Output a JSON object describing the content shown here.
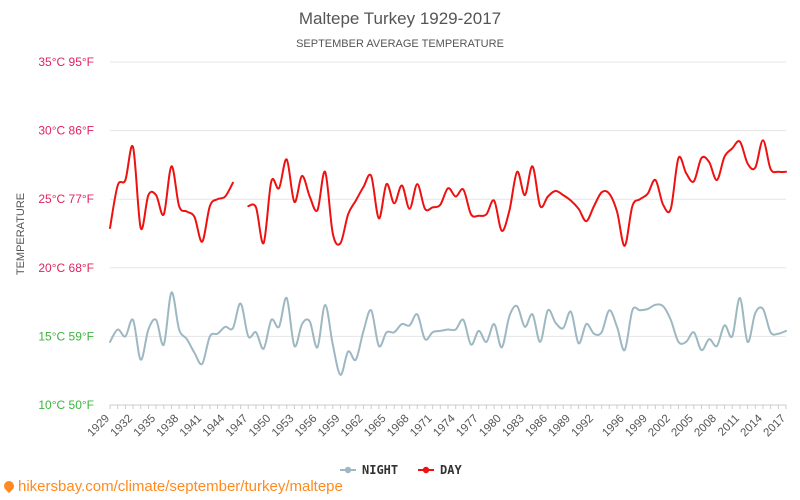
{
  "chart_data": {
    "type": "line",
    "title": "Maltepe Turkey 1929-2017",
    "subtitle": "SEPTEMBER AVERAGE TEMPERATURE",
    "ylabel": "TEMPERATURE",
    "ylim": [
      10,
      35
    ],
    "y_ticks": [
      {
        "value": 35,
        "label": "35°C 95°F",
        "color": "#e0245e"
      },
      {
        "value": 30,
        "label": "30°C 86°F",
        "color": "#e0245e"
      },
      {
        "value": 25,
        "label": "25°C 77°F",
        "color": "#e0245e"
      },
      {
        "value": 20,
        "label": "20°C 68°F",
        "color": "#e0245e"
      },
      {
        "value": 15,
        "label": "15°C 59°F",
        "color": "#3fb33f"
      },
      {
        "value": 10,
        "label": "10°C 50°F",
        "color": "#3fb33f"
      }
    ],
    "x_tick_labels": [
      "1929",
      "1932",
      "1935",
      "1938",
      "1941",
      "1944",
      "1947",
      "1950",
      "1953",
      "1956",
      "1959",
      "1962",
      "1965",
      "1968",
      "1971",
      "1974",
      "1977",
      "1980",
      "1983",
      "1986",
      "1989",
      "1992",
      "1996",
      "1999",
      "2002",
      "2005",
      "2008",
      "2011",
      "2014",
      "2017"
    ],
    "legend_position": "bottom",
    "grid": true,
    "series": [
      {
        "name": "NIGHT",
        "color": "#9db8c2",
        "points": [
          [
            1929,
            14.6
          ],
          [
            1930,
            15.5
          ],
          [
            1931,
            15.0
          ],
          [
            1932,
            16.2
          ],
          [
            1933,
            13.3
          ],
          [
            1934,
            15.5
          ],
          [
            1935,
            16.2
          ],
          [
            1936,
            14.4
          ],
          [
            1937,
            18.2
          ],
          [
            1938,
            15.5
          ],
          [
            1939,
            14.8
          ],
          [
            1940,
            13.8
          ],
          [
            1941,
            13.0
          ],
          [
            1942,
            15.0
          ],
          [
            1943,
            15.2
          ],
          [
            1944,
            15.7
          ],
          [
            1945,
            15.6
          ],
          [
            1946,
            17.4
          ],
          [
            1947,
            15.0
          ],
          [
            1948,
            15.3
          ],
          [
            1949,
            14.1
          ],
          [
            1950,
            16.2
          ],
          [
            1951,
            15.7
          ],
          [
            1952,
            17.8
          ],
          [
            1953,
            14.3
          ],
          [
            1954,
            15.9
          ],
          [
            1955,
            16.1
          ],
          [
            1956,
            14.2
          ],
          [
            1957,
            17.3
          ],
          [
            1958,
            14.4
          ],
          [
            1959,
            12.2
          ],
          [
            1960,
            13.9
          ],
          [
            1961,
            13.3
          ],
          [
            1962,
            15.4
          ],
          [
            1963,
            16.9
          ],
          [
            1964,
            14.3
          ],
          [
            1965,
            15.3
          ],
          [
            1966,
            15.3
          ],
          [
            1967,
            15.9
          ],
          [
            1968,
            15.8
          ],
          [
            1969,
            16.6
          ],
          [
            1970,
            14.8
          ],
          [
            1971,
            15.3
          ],
          [
            1972,
            15.4
          ],
          [
            1973,
            15.5
          ],
          [
            1974,
            15.5
          ],
          [
            1975,
            16.2
          ],
          [
            1976,
            14.4
          ],
          [
            1977,
            15.4
          ],
          [
            1978,
            14.6
          ],
          [
            1979,
            15.9
          ],
          [
            1980,
            14.2
          ],
          [
            1981,
            16.5
          ],
          [
            1982,
            17.2
          ],
          [
            1983,
            15.7
          ],
          [
            1984,
            16.6
          ],
          [
            1985,
            14.6
          ],
          [
            1986,
            16.9
          ],
          [
            1987,
            16.0
          ],
          [
            1988,
            15.6
          ],
          [
            1989,
            16.8
          ],
          [
            1990,
            14.5
          ],
          [
            1991,
            15.9
          ],
          [
            1992,
            15.2
          ],
          [
            1993,
            15.3
          ],
          [
            1994,
            16.9
          ],
          [
            1995,
            15.7
          ],
          [
            1996,
            14.0
          ],
          [
            1997,
            16.9
          ],
          [
            1998,
            16.9
          ],
          [
            1999,
            17.0
          ],
          [
            2000,
            17.3
          ],
          [
            2001,
            17.2
          ],
          [
            2002,
            16.2
          ],
          [
            2003,
            14.6
          ],
          [
            2004,
            14.6
          ],
          [
            2005,
            15.3
          ],
          [
            2006,
            14.0
          ],
          [
            2007,
            14.8
          ],
          [
            2008,
            14.3
          ],
          [
            2009,
            15.8
          ],
          [
            2010,
            15.0
          ],
          [
            2011,
            17.8
          ],
          [
            2012,
            14.6
          ],
          [
            2013,
            16.7
          ],
          [
            2014,
            17.0
          ],
          [
            2015,
            15.3
          ],
          [
            2016,
            15.2
          ],
          [
            2017,
            15.4
          ]
        ]
      },
      {
        "name": "DAY",
        "color": "#ee1111",
        "points": [
          [
            1929,
            22.9
          ],
          [
            1930,
            26.0
          ],
          [
            1931,
            26.4
          ],
          [
            1932,
            28.8
          ],
          [
            1933,
            22.9
          ],
          [
            1934,
            25.3
          ],
          [
            1935,
            25.3
          ],
          [
            1936,
            23.9
          ],
          [
            1937,
            27.4
          ],
          [
            1938,
            24.5
          ],
          [
            1939,
            24.1
          ],
          [
            1940,
            23.7
          ],
          [
            1941,
            21.9
          ],
          [
            1942,
            24.5
          ],
          [
            1943,
            25.0
          ],
          [
            1944,
            25.2
          ],
          [
            1945,
            26.2
          ],
          [
            1946,
            null
          ],
          [
            1947,
            24.5
          ],
          [
            1948,
            24.4
          ],
          [
            1949,
            21.8
          ],
          [
            1950,
            26.3
          ],
          [
            1951,
            25.8
          ],
          [
            1952,
            27.9
          ],
          [
            1953,
            24.8
          ],
          [
            1954,
            26.7
          ],
          [
            1955,
            25.2
          ],
          [
            1956,
            24.2
          ],
          [
            1957,
            27.0
          ],
          [
            1958,
            22.5
          ],
          [
            1959,
            21.8
          ],
          [
            1960,
            23.9
          ],
          [
            1961,
            24.9
          ],
          [
            1962,
            25.9
          ],
          [
            1963,
            26.7
          ],
          [
            1964,
            23.6
          ],
          [
            1965,
            26.1
          ],
          [
            1966,
            24.7
          ],
          [
            1967,
            26.0
          ],
          [
            1968,
            24.3
          ],
          [
            1969,
            26.1
          ],
          [
            1970,
            24.3
          ],
          [
            1971,
            24.4
          ],
          [
            1972,
            24.6
          ],
          [
            1973,
            25.8
          ],
          [
            1974,
            25.2
          ],
          [
            1975,
            25.7
          ],
          [
            1976,
            23.9
          ],
          [
            1977,
            23.8
          ],
          [
            1978,
            23.9
          ],
          [
            1979,
            24.9
          ],
          [
            1980,
            22.7
          ],
          [
            1981,
            24.2
          ],
          [
            1982,
            27.0
          ],
          [
            1983,
            25.3
          ],
          [
            1984,
            27.4
          ],
          [
            1985,
            24.5
          ],
          [
            1986,
            25.2
          ],
          [
            1987,
            25.6
          ],
          [
            1988,
            25.3
          ],
          [
            1989,
            24.9
          ],
          [
            1990,
            24.3
          ],
          [
            1991,
            23.4
          ],
          [
            1992,
            24.5
          ],
          [
            1993,
            25.5
          ],
          [
            1994,
            25.4
          ],
          [
            1995,
            24.1
          ],
          [
            1996,
            21.6
          ],
          [
            1997,
            24.5
          ],
          [
            1998,
            25.0
          ],
          [
            1999,
            25.4
          ],
          [
            2000,
            26.4
          ],
          [
            2001,
            24.6
          ],
          [
            2002,
            24.3
          ],
          [
            2003,
            28.0
          ],
          [
            2004,
            26.9
          ],
          [
            2005,
            26.3
          ],
          [
            2006,
            28.0
          ],
          [
            2007,
            27.7
          ],
          [
            2008,
            26.4
          ],
          [
            2009,
            28.1
          ],
          [
            2010,
            28.7
          ],
          [
            2011,
            29.2
          ],
          [
            2012,
            27.6
          ],
          [
            2013,
            27.3
          ],
          [
            2014,
            29.3
          ],
          [
            2015,
            27.2
          ],
          [
            2016,
            27.0
          ],
          [
            2017,
            27.0
          ]
        ]
      }
    ]
  },
  "footer": {
    "source_text": "hikersbay.com/climate/september/turkey/maltepe",
    "source_color": "#ff8a1f"
  }
}
